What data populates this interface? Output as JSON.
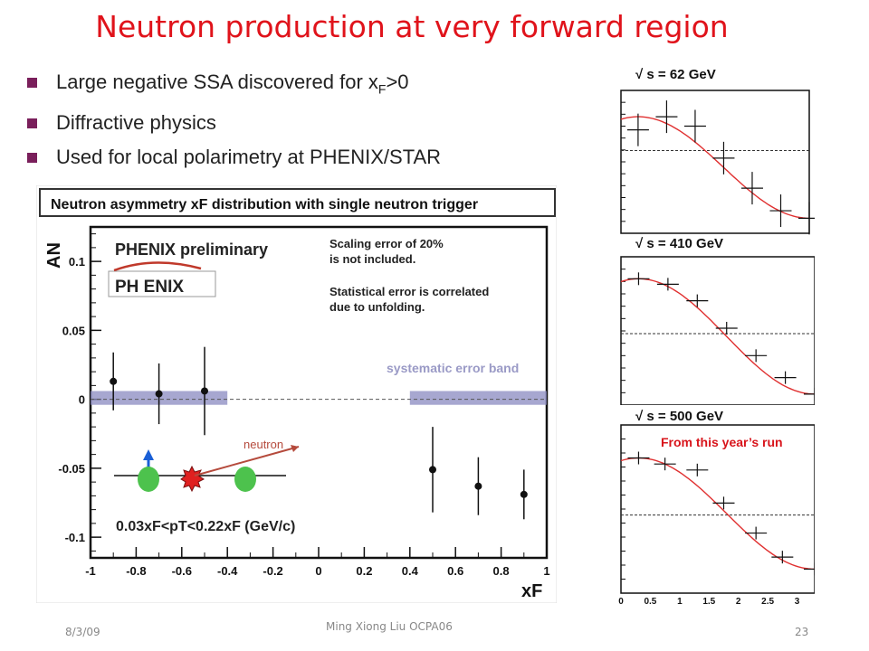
{
  "slide": {
    "title": "Neutron production at very forward region",
    "bullets": [
      {
        "pre": "Large negative SSA discovered for x",
        "sub": "F",
        "post": ">0"
      },
      {
        "pre": "Diffractive physics",
        "sub": "",
        "post": ""
      },
      {
        "pre": "Used for local polarimetry at PHENIX/STAR",
        "sub": "",
        "post": ""
      }
    ],
    "footer": {
      "date": "8/3/09",
      "author": "Ming Xiong Liu  OCPA06",
      "page": "23"
    }
  },
  "colors": {
    "title": "#e0131b",
    "bullet": "#7a1f5b",
    "band": "#8a8ac0",
    "fit": "#e03030",
    "neutron_arrow": "#b54a3c"
  },
  "chart_data": [
    {
      "type": "scatter",
      "title": "Neutron asymmetry xF distribution with single neutron trigger",
      "xlabel": "xF",
      "ylabel": "AN",
      "xlim": [
        -1,
        1
      ],
      "ylim": [
        -0.115,
        0.125
      ],
      "xticks": [
        "-1",
        "-0.8",
        "-0.6",
        "-0.4",
        "-0.2",
        "0",
        "0.2",
        "0.4",
        "0.6",
        "0.8",
        "1"
      ],
      "xtick_values": [
        -1,
        -0.8,
        -0.6,
        -0.4,
        -0.2,
        0,
        0.2,
        0.4,
        0.6,
        0.8,
        1
      ],
      "yticks": [
        "0.1",
        "0.05",
        "0",
        "-0.05",
        "-0.1"
      ],
      "ytick_values": [
        0.1,
        0.05,
        0,
        -0.05,
        -0.1
      ],
      "series": [
        {
          "x": [
            -0.9,
            -0.7,
            -0.5,
            0.5,
            0.7,
            0.9
          ],
          "y": [
            0.013,
            0.004,
            0.006,
            -0.051,
            -0.063,
            -0.069
          ],
          "err": [
            0.021,
            0.022,
            0.032,
            0.031,
            0.021,
            0.018
          ]
        }
      ],
      "bands": [
        {
          "x0": -1,
          "x1": -0.4,
          "y0": -0.004,
          "y1": 0.006
        },
        {
          "x0": 0.4,
          "x1": 1,
          "y0": -0.004,
          "y1": 0.006
        }
      ],
      "annotations": {
        "preliminary": "PHENIX preliminary",
        "logo": "PH ENIX",
        "note1": [
          "Scaling error of 20%",
          "is not included."
        ],
        "note2": [
          "Statistical error is correlated",
          "due to unfolding."
        ],
        "band_label": "systematic error band",
        "neutron_label": "neutron",
        "cut": "0.03xF<pT<0.22xF (GeV/c)"
      }
    },
    {
      "type": "line",
      "label": "√ s = 62 GeV",
      "points_x": [
        0.3,
        0.8,
        1.3,
        1.8,
        2.3,
        2.8,
        3.3
      ],
      "points_y": [
        0.55,
        0.9,
        0.65,
        -0.2,
        -1.0,
        -1.6,
        -1.8
      ],
      "yref": 0
    },
    {
      "type": "line",
      "label": "√ s = 410 GeV",
      "points_x": [
        0.3,
        0.8,
        1.3,
        1.8,
        2.3,
        2.8,
        3.3
      ],
      "points_y": [
        1.0,
        0.9,
        0.6,
        0.1,
        -0.4,
        -0.8,
        -1.1
      ],
      "yref": 0
    },
    {
      "type": "line",
      "label": "√ s = 500 GeV",
      "sublabel": "From this year’s run",
      "xticks": [
        "0",
        "0.5",
        "1",
        "1.5",
        "2",
        "2.5",
        "3"
      ],
      "xtick_values": [
        0,
        0.5,
        1,
        1.5,
        2,
        2.5,
        3
      ],
      "points_x": [
        0.3,
        0.75,
        1.3,
        1.75,
        2.3,
        2.75,
        3.3
      ],
      "points_y": [
        0.95,
        0.85,
        0.75,
        0.2,
        -0.3,
        -0.7,
        -0.9
      ],
      "yref": 0
    }
  ]
}
